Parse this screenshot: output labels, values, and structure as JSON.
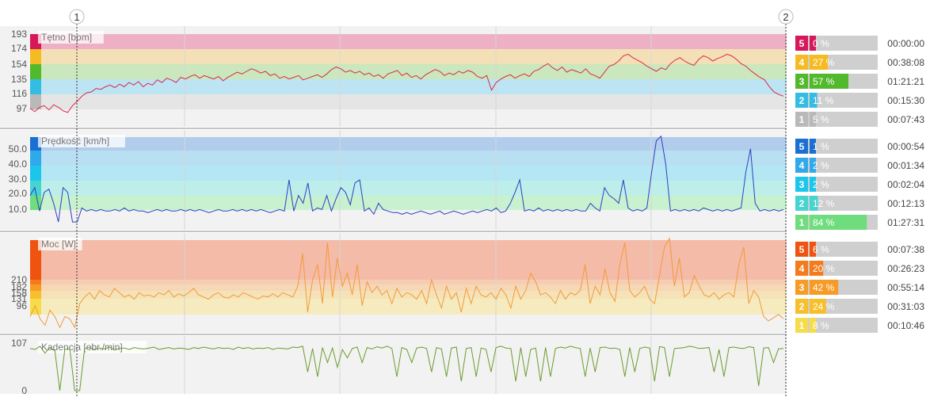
{
  "colors": {
    "background": "#f2f2f2",
    "hr_line": "#d8294e",
    "speed_line": "#2b3fc2",
    "power_line": "#f39a3a",
    "cadence_line": "#6b9a2e"
  },
  "markers": [
    "1",
    "2"
  ],
  "chart_data": [
    {
      "type": "line",
      "title": "Tętno [bpm]",
      "yticks": [
        "193",
        "174",
        "154",
        "135",
        "116",
        "97"
      ],
      "series": [
        {
          "values": [
            103,
            99,
            104,
            106,
            101,
            107,
            104,
            100,
            98,
            106,
            111,
            117,
            121,
            122,
            126,
            125,
            128,
            130,
            127,
            131,
            128,
            133,
            130,
            134,
            128,
            132,
            130,
            136,
            133,
            138,
            136,
            133,
            139,
            137,
            140,
            142,
            138,
            141,
            139,
            137,
            140,
            135,
            139,
            142,
            145,
            143,
            146,
            149,
            147,
            144,
            146,
            141,
            143,
            138,
            140,
            137,
            139,
            141,
            136,
            138,
            140,
            142,
            139,
            143,
            148,
            151,
            149,
            145,
            147,
            144,
            146,
            142,
            144,
            140,
            142,
            138,
            143,
            145,
            147,
            141,
            144,
            139,
            141,
            137,
            142,
            145,
            148,
            146,
            141,
            144,
            142,
            146,
            144,
            147,
            145,
            140,
            138,
            141,
            124,
            133,
            137,
            140,
            142,
            138,
            141,
            143,
            140,
            146,
            148,
            152,
            155,
            150,
            147,
            151,
            145,
            148,
            146,
            144,
            149,
            143,
            141,
            138,
            145,
            152,
            154,
            158,
            164,
            166,
            162,
            159,
            156,
            152,
            149,
            146,
            150,
            148,
            155,
            159,
            162,
            158,
            155,
            153,
            160,
            164,
            162,
            158,
            161,
            163,
            166,
            164,
            160,
            155,
            152,
            147,
            143,
            139,
            136,
            128,
            122,
            119,
            117
          ]
        }
      ],
      "zones": [
        {
          "zone": "5",
          "pct": 0,
          "pct_label": "0 %",
          "time": "00:00:00",
          "color": "#d6175a",
          "band": "#eeb0c5"
        },
        {
          "zone": "4",
          "pct": 27,
          "pct_label": "27 %",
          "time": "00:38:08",
          "color": "#f5bb23",
          "band": "#f4e0b6"
        },
        {
          "zone": "3",
          "pct": 57,
          "pct_label": "57 %",
          "time": "01:21:21",
          "color": "#52b82c",
          "band": "#cbe7bd"
        },
        {
          "zone": "2",
          "pct": 11,
          "pct_label": "11 %",
          "time": "00:15:30",
          "color": "#33bde5",
          "band": "#bde4f2"
        },
        {
          "zone": "1",
          "pct": 5,
          "pct_label": "5 %",
          "time": "00:07:43",
          "color": "#b9b9b9",
          "band": "#e5e5e5"
        }
      ]
    },
    {
      "type": "line",
      "title": "Prędkość [km/h]",
      "yticks": [
        "50.0",
        "40.0",
        "30.0",
        "20.0",
        "10.0"
      ],
      "series": [
        {
          "values": [
            20,
            25,
            10,
            22,
            24,
            15,
            3,
            25,
            22,
            3,
            3,
            12,
            10,
            11,
            10,
            11,
            10,
            10,
            11,
            10,
            12,
            10,
            11,
            10,
            10,
            9,
            10,
            11,
            10,
            11,
            10,
            10,
            11,
            10,
            11,
            10,
            11,
            10,
            9,
            10,
            11,
            10,
            10,
            11,
            10,
            11,
            10,
            11,
            10,
            11,
            10,
            9,
            10,
            11,
            10,
            30,
            10,
            20,
            15,
            28,
            10,
            12,
            11,
            20,
            10,
            18,
            25,
            22,
            14,
            28,
            30,
            10,
            12,
            8,
            15,
            11,
            10,
            9,
            9,
            8,
            9,
            8,
            9,
            10,
            9,
            8,
            9,
            10,
            8,
            9,
            10,
            9,
            8,
            9,
            10,
            9,
            10,
            11,
            10,
            12,
            9,
            10,
            15,
            22,
            30,
            10,
            11,
            10,
            12,
            10,
            11,
            10,
            11,
            10,
            11,
            10,
            11,
            10,
            10,
            15,
            12,
            10,
            25,
            20,
            18,
            15,
            30,
            12,
            10,
            11,
            10,
            12,
            35,
            55,
            58,
            40,
            10,
            11,
            10,
            11,
            10,
            11,
            10,
            12,
            11,
            10,
            11,
            10,
            11,
            10,
            11,
            12,
            35,
            50,
            15,
            10,
            11,
            10,
            11,
            10,
            11
          ]
        }
      ],
      "zones": [
        {
          "zone": "5",
          "pct": 1,
          "pct_label": "1 %",
          "time": "00:00:54",
          "color": "#1a6fd2",
          "band": "#b2cdec"
        },
        {
          "zone": "4",
          "pct": 2,
          "pct_label": "2 %",
          "time": "00:01:34",
          "color": "#2fa9ea",
          "band": "#b9dff3"
        },
        {
          "zone": "3",
          "pct": 2,
          "pct_label": "2 %",
          "time": "00:02:04",
          "color": "#1cc6ea",
          "band": "#b4e7f3"
        },
        {
          "zone": "2",
          "pct": 12,
          "pct_label": "12 %",
          "time": "00:12:13",
          "color": "#45d4d0",
          "band": "#bdeee9"
        },
        {
          "zone": "1",
          "pct": 84,
          "pct_label": "84 %",
          "time": "01:27:31",
          "color": "#6fdc7e",
          "band": "#c8f1d0"
        }
      ]
    },
    {
      "type": "line",
      "title": "Moc [W]",
      "yticks": [
        "210",
        "182",
        "158",
        "131",
        "96"
      ],
      "series": [
        {
          "values": [
            60,
            110,
            50,
            20,
            90,
            60,
            10,
            60,
            50,
            10,
            120,
            150,
            170,
            140,
            180,
            160,
            150,
            190,
            170,
            150,
            160,
            140,
            170,
            155,
            160,
            150,
            170,
            160,
            180,
            150,
            165,
            155,
            170,
            190,
            160,
            150,
            140,
            160,
            170,
            150,
            145,
            160,
            150,
            170,
            160,
            150,
            140,
            155,
            150,
            165,
            150,
            170,
            160,
            150,
            200,
            350,
            80,
            230,
            300,
            120,
            400,
            150,
            330,
            200,
            260,
            160,
            300,
            110,
            220,
            170,
            200,
            160,
            180,
            120,
            190,
            150,
            170,
            160,
            140,
            180,
            120,
            230,
            160,
            100,
            200,
            140,
            170,
            80,
            190,
            120,
            200,
            160,
            150,
            170,
            140,
            190,
            160,
            100,
            200,
            140,
            180,
            260,
            220,
            160,
            170,
            150,
            120,
            180,
            140,
            170,
            160,
            180,
            300,
            120,
            200,
            160,
            280,
            170,
            130,
            300,
            400,
            180,
            150,
            170,
            200,
            140,
            120,
            250,
            380,
            420,
            200,
            330,
            150,
            170,
            250,
            200,
            160,
            150,
            170,
            140,
            160,
            170,
            150,
            300,
            380,
            120,
            180,
            150,
            60,
            40,
            55,
            70,
            50
          ]
        }
      ],
      "zones": [
        {
          "zone": "5",
          "pct": 6,
          "pct_label": "6 %",
          "time": "00:07:38",
          "color": "#f0520f",
          "band": "#f4bba8"
        },
        {
          "zone": "4",
          "pct": 20,
          "pct_label": "20 %",
          "time": "00:26:23",
          "color": "#f47a1c",
          "band": "#f5cdb3"
        },
        {
          "zone": "3",
          "pct": 42,
          "pct_label": "42 %",
          "time": "00:55:14",
          "color": "#f69b25",
          "band": "#f6d8b6"
        },
        {
          "zone": "2",
          "pct": 24,
          "pct_label": "24 %",
          "time": "00:31:03",
          "color": "#f7bf2c",
          "band": "#f5e2b8"
        },
        {
          "zone": "1",
          "pct": 8,
          "pct_label": "8 %",
          "time": "00:10:46",
          "color": "#f6dc4a",
          "band": "#f5ebbe"
        }
      ]
    },
    {
      "type": "line",
      "title": "Kadencja [obr./min]",
      "yticks": [
        "107",
        "0"
      ],
      "series": [
        {
          "values": [
            90,
            88,
            95,
            80,
            92,
            85,
            0,
            88,
            90,
            0,
            0,
            90,
            92,
            88,
            91,
            89,
            93,
            87,
            90,
            91,
            88,
            92,
            90,
            89,
            91,
            93,
            88,
            90,
            92,
            89,
            91,
            90,
            88,
            92,
            90,
            93,
            91,
            89,
            92,
            90,
            91,
            88,
            93,
            90,
            92,
            89,
            91,
            90,
            92,
            88,
            91,
            90,
            89,
            93,
            92,
            95,
            40,
            90,
            30,
            92,
            60,
            91,
            50,
            88,
            70,
            90,
            93,
            60,
            92,
            89,
            94,
            91,
            95,
            90,
            30,
            92,
            88,
            60,
            91,
            93,
            90,
            40,
            92,
            89,
            30,
            91,
            93,
            20,
            90,
            92,
            30,
            91,
            88,
            40,
            92,
            95,
            91,
            90,
            20,
            92,
            30,
            88,
            91,
            20,
            92,
            30,
            90,
            93,
            91,
            95,
            92,
            90,
            30,
            91,
            40,
            92,
            93,
            90,
            91,
            88,
            30,
            92,
            40,
            90,
            93,
            91,
            20,
            94,
            92,
            30,
            90,
            91,
            92,
            95,
            93,
            90,
            91,
            92,
            40,
            88,
            30,
            92,
            93,
            91,
            90,
            94,
            92,
            10,
            91,
            92,
            60,
            89,
            90
          ]
        }
      ],
      "zones": []
    }
  ]
}
